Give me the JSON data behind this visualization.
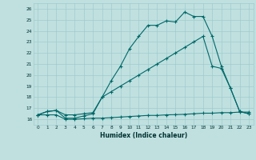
{
  "xlabel": "Humidex (Indice chaleur)",
  "bg_color": "#c0e0e0",
  "grid_color": "#a0cccc",
  "line_color": "#006868",
  "xlim": [
    -0.5,
    23.5
  ],
  "ylim": [
    15.5,
    26.5
  ],
  "yticks": [
    16,
    17,
    18,
    19,
    20,
    21,
    22,
    23,
    24,
    25,
    26
  ],
  "xticks": [
    0,
    1,
    2,
    3,
    4,
    5,
    6,
    7,
    8,
    9,
    10,
    11,
    12,
    13,
    14,
    15,
    16,
    17,
    18,
    19,
    20,
    21,
    22,
    23
  ],
  "line1_x": [
    0,
    1,
    2,
    3,
    4,
    5,
    6,
    7,
    8,
    9,
    10,
    11,
    12,
    13,
    14,
    15,
    16,
    17,
    18,
    19,
    20,
    21,
    22,
    23
  ],
  "line1_y": [
    16.4,
    16.4,
    16.4,
    16.0,
    16.0,
    16.05,
    16.1,
    16.1,
    16.15,
    16.2,
    16.25,
    16.3,
    16.35,
    16.35,
    16.4,
    16.42,
    16.45,
    16.5,
    16.55,
    16.55,
    16.6,
    16.6,
    16.65,
    16.65
  ],
  "line2_x": [
    0,
    1,
    2,
    3,
    4,
    5,
    6,
    7,
    8,
    9,
    10,
    11,
    12,
    13,
    14,
    15,
    16,
    17,
    18,
    19,
    20,
    21,
    22,
    23
  ],
  "line2_y": [
    16.4,
    16.7,
    16.8,
    16.1,
    16.1,
    16.3,
    16.5,
    18.0,
    19.5,
    20.8,
    22.4,
    23.5,
    24.5,
    24.5,
    24.9,
    24.8,
    25.7,
    25.3,
    25.3,
    23.5,
    20.8,
    18.8,
    16.7,
    16.5
  ],
  "line3_x": [
    0,
    1,
    2,
    3,
    4,
    5,
    6,
    7,
    8,
    9,
    10,
    11,
    12,
    13,
    14,
    15,
    16,
    17,
    18,
    19,
    20,
    21,
    22,
    23
  ],
  "line3_y": [
    16.4,
    16.7,
    16.8,
    16.4,
    16.4,
    16.5,
    16.6,
    18.0,
    18.5,
    19.0,
    19.5,
    20.0,
    20.5,
    21.0,
    21.5,
    22.0,
    22.5,
    23.0,
    23.5,
    20.8,
    20.6,
    18.8,
    16.7,
    16.5
  ]
}
